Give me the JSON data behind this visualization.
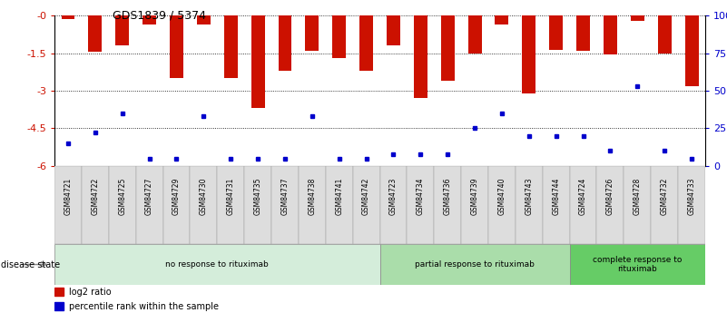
{
  "title": "GDS1839 / 5374",
  "samples": [
    "GSM84721",
    "GSM84722",
    "GSM84725",
    "GSM84727",
    "GSM84729",
    "GSM84730",
    "GSM84731",
    "GSM84735",
    "GSM84737",
    "GSM84738",
    "GSM84741",
    "GSM84742",
    "GSM84723",
    "GSM84734",
    "GSM84736",
    "GSM84739",
    "GSM84740",
    "GSM84743",
    "GSM84744",
    "GSM84724",
    "GSM84726",
    "GSM84728",
    "GSM84732",
    "GSM84733"
  ],
  "log2_ratios": [
    -0.15,
    -1.45,
    -1.2,
    -0.35,
    -2.5,
    -0.35,
    -2.5,
    -3.7,
    -2.2,
    -1.4,
    -1.7,
    -2.2,
    -1.2,
    -3.3,
    -2.6,
    -1.5,
    -0.35,
    -3.1,
    -1.35,
    -1.4,
    -1.55,
    -0.2,
    -1.5,
    -2.8
  ],
  "percentile_ranks": [
    15,
    22,
    35,
    5,
    5,
    33,
    5,
    5,
    5,
    33,
    5,
    5,
    8,
    8,
    8,
    25,
    35,
    20,
    20,
    20,
    10,
    53,
    10,
    5
  ],
  "group_labels": [
    "no response to rituximab",
    "partial response to rituximab",
    "complete response to\nrituximab"
  ],
  "group_sizes": [
    12,
    7,
    5
  ],
  "group_colors": [
    "#d4edda",
    "#aaddaa",
    "#66cc66"
  ],
  "bar_color": "#cc1100",
  "dot_color": "#0000cc",
  "ylim_left": [
    -6,
    0
  ],
  "yticks_left": [
    -6.0,
    -4.5,
    -3.0,
    -1.5,
    0.0
  ],
  "ytick_labels_left": [
    "-6",
    "-4.5",
    "-3",
    "-1.5",
    "-0"
  ],
  "yticks_right": [
    0,
    25,
    50,
    75,
    100
  ],
  "ytick_labels_right": [
    "0",
    "25",
    "50",
    "75",
    "100%"
  ],
  "left_axis_color": "#cc1100",
  "right_axis_color": "#0000cc",
  "disease_state_label": "disease state",
  "legend_items": [
    "log2 ratio",
    "percentile rank within the sample"
  ]
}
